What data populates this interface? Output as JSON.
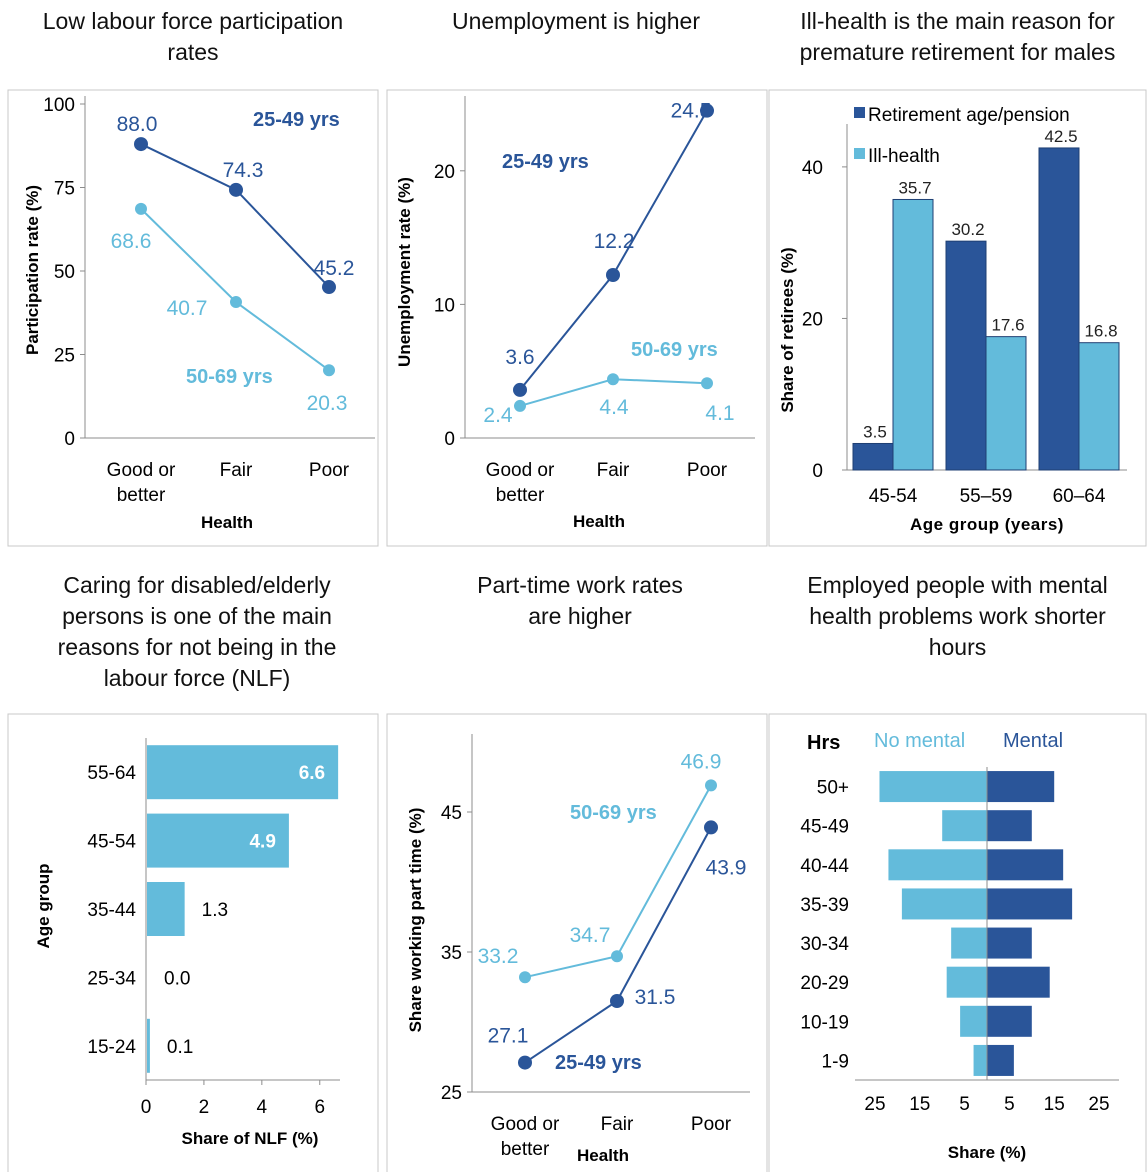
{
  "colors": {
    "dark": "#2a5599",
    "light": "#63bbdb",
    "axis": "#8c8c8c"
  },
  "chart_data": [
    {
      "id": "participation",
      "type": "line",
      "title_lines": [
        "Low labour force participation",
        "rates"
      ],
      "categories": [
        "Good or better",
        "Fair",
        "Poor"
      ],
      "category_lines": [
        [
          "Good or",
          "better"
        ],
        [
          "Fair"
        ],
        [
          "Poor"
        ]
      ],
      "series": [
        {
          "name": "25-49 yrs",
          "values": [
            88.0,
            74.3,
            45.2
          ],
          "labels": [
            "88.0",
            "74.3",
            "45.2"
          ]
        },
        {
          "name": "50-69 yrs",
          "values": [
            68.6,
            40.7,
            20.3
          ],
          "labels": [
            "68.6",
            "40.7",
            "20.3"
          ]
        }
      ],
      "xlabel": "Health",
      "ylabel": "Participation  rate (%)",
      "ylim": [
        0,
        100
      ],
      "yticks": [
        0,
        25,
        50,
        75,
        100
      ],
      "ytick_labels": [
        "0",
        "25",
        "50",
        "75",
        "100"
      ]
    },
    {
      "id": "unemployment",
      "type": "line",
      "title_lines": [
        "Unemployment is higher"
      ],
      "categories": [
        "Good or better",
        "Fair",
        "Poor"
      ],
      "category_lines": [
        [
          "Good or",
          "better"
        ],
        [
          "Fair"
        ],
        [
          "Poor"
        ]
      ],
      "series": [
        {
          "name": "25-49 yrs",
          "values": [
            3.6,
            12.2,
            24.5
          ],
          "labels": [
            "3.6",
            "12.2",
            "24.5"
          ]
        },
        {
          "name": "50-69 yrs",
          "values": [
            2.4,
            4.4,
            4.1
          ],
          "labels": [
            "2.4",
            "4.4",
            "4.1"
          ]
        }
      ],
      "xlabel": "Health",
      "ylabel": "Unemployment  rate (%)",
      "ylim": [
        0,
        25
      ],
      "yticks": [
        0,
        10,
        20
      ],
      "ytick_labels": [
        "0",
        "10",
        "20"
      ]
    },
    {
      "id": "retirement",
      "type": "bar",
      "title_lines": [
        "Ill-health is the main reason for",
        "premature retirement for males"
      ],
      "categories": [
        "45-54",
        "55–59",
        "60–64"
      ],
      "series": [
        {
          "name": "Retirement  age/pension",
          "values": [
            3.5,
            30.2,
            42.5
          ],
          "labels": [
            "3.5",
            "30.2",
            "42.5"
          ]
        },
        {
          "name": "Ill-health",
          "values": [
            35.7,
            17.6,
            16.8
          ],
          "labels": [
            "35.7",
            "17.6",
            "16.8"
          ]
        }
      ],
      "xlabel": "Age group  (years)",
      "ylabel": "Share  of retirees  (%)",
      "ylim": [
        0,
        45
      ],
      "yticks": [
        0,
        20,
        40
      ],
      "ytick_labels": [
        "0",
        "20",
        "40"
      ],
      "legend": "top-left"
    },
    {
      "id": "caring",
      "type": "bar",
      "orientation": "horizontal",
      "title_lines": [
        "Caring for disabled/elderly",
        "persons is one of the main",
        "reasons for not being in the",
        "labour force (NLF)"
      ],
      "categories": [
        "55-64",
        "45-54",
        "35-44",
        "25-34",
        "15-24"
      ],
      "values": [
        6.6,
        4.9,
        1.3,
        0.0,
        0.1
      ],
      "labels": [
        "6.6",
        "4.9",
        "1.3",
        "0.0",
        "0.1"
      ],
      "xlabel": "Share of NLF (%)",
      "ylabel": "Age group",
      "xlim": [
        0,
        7
      ],
      "xticks": [
        0,
        2,
        4,
        6
      ],
      "xtick_labels": [
        "0",
        "2",
        "4",
        "6"
      ]
    },
    {
      "id": "parttime",
      "type": "line",
      "title_lines": [
        "Part-time work rates",
        "are higher"
      ],
      "categories": [
        "Good or better",
        "Fair",
        "Poor"
      ],
      "category_lines": [
        [
          "Good or",
          "better"
        ],
        [
          "Fair"
        ],
        [
          "Poor"
        ]
      ],
      "series": [
        {
          "name": "25-49 yrs",
          "values": [
            27.1,
            31.5,
            43.9
          ],
          "labels": [
            "27.1",
            "31.5",
            "43.9"
          ]
        },
        {
          "name": "50-69 yrs",
          "values": [
            33.2,
            34.7,
            46.9
          ],
          "labels": [
            "33.2",
            "34.7",
            "46.9"
          ]
        }
      ],
      "xlabel": "Health",
      "ylabel": "Share working part time  (%)",
      "ylim": [
        25,
        50
      ],
      "yticks": [
        25,
        35,
        45
      ],
      "ytick_labels": [
        "25",
        "35",
        "45"
      ]
    },
    {
      "id": "hours",
      "type": "bar",
      "orientation": "horizontal",
      "title_lines": [
        "Employed people with mental",
        "health problems work shorter",
        "hours"
      ],
      "header": "Hrs",
      "categories": [
        "50+",
        "45-49",
        "40-44",
        "35-39",
        "30-34",
        "20-29",
        "10-19",
        "1-9"
      ],
      "series": [
        {
          "name": "No mental",
          "values": [
            24,
            10,
            22,
            19,
            8,
            9,
            6,
            3
          ]
        },
        {
          "name": "Mental",
          "values": [
            15,
            10,
            17,
            19,
            10,
            14,
            10,
            6
          ]
        }
      ],
      "xlabel": "Share (%)",
      "xlim": [
        -28,
        28
      ],
      "xticks": [
        -25,
        -15,
        -5,
        5,
        15,
        25
      ],
      "xtick_labels": [
        "25",
        "15",
        "5",
        "5",
        "15",
        "25"
      ]
    }
  ]
}
